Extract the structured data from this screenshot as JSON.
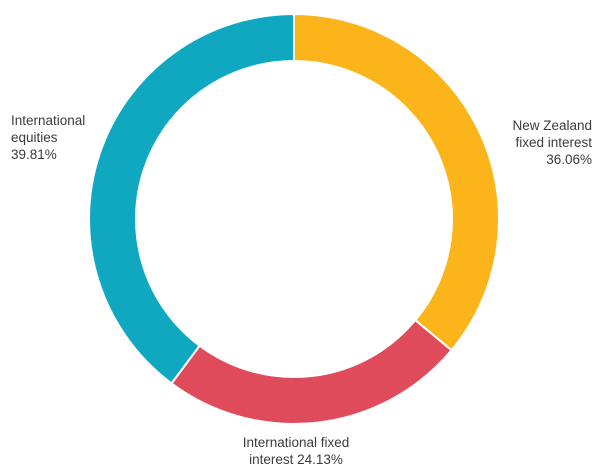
{
  "chart_data": {
    "type": "pie",
    "title": "",
    "donut": true,
    "legend": "none",
    "slices": [
      {
        "name": "New Zealand fixed interest",
        "value": 36.06,
        "color": "#fbb41a",
        "label_lines": [
          "New Zealand",
          "fixed interest",
          "36.06%"
        ]
      },
      {
        "name": "International fixed interest",
        "value": 24.13,
        "color": "#e04b5c",
        "label_lines": [
          "International fixed",
          "interest 24.13%"
        ]
      },
      {
        "name": "International equities",
        "value": 39.81,
        "color": "#10a8c1",
        "label_lines": [
          "International",
          "equities",
          "39.81%"
        ]
      }
    ]
  }
}
